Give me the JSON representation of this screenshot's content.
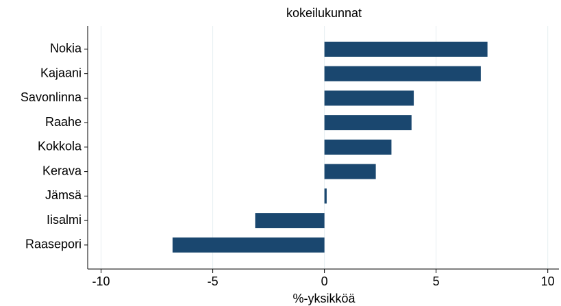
{
  "chart_data": {
    "type": "barh",
    "title": "kokeilukunnat",
    "x_label": "%-yksikköä",
    "categories": [
      "Nokia",
      "Kajaani",
      "Savonlinna",
      "Raahe",
      "Kokkola",
      "Kerava",
      "Jämsä",
      "Iisalmi",
      "Raasepori"
    ],
    "values": [
      7.3,
      7.0,
      4.0,
      3.9,
      3.0,
      2.3,
      0.1,
      -3.1,
      -6.8
    ],
    "color": "#1a476f",
    "xlim": [
      -10.6,
      10.5
    ],
    "xticks": [
      -10,
      -5,
      0,
      5,
      10
    ],
    "grid": true
  }
}
